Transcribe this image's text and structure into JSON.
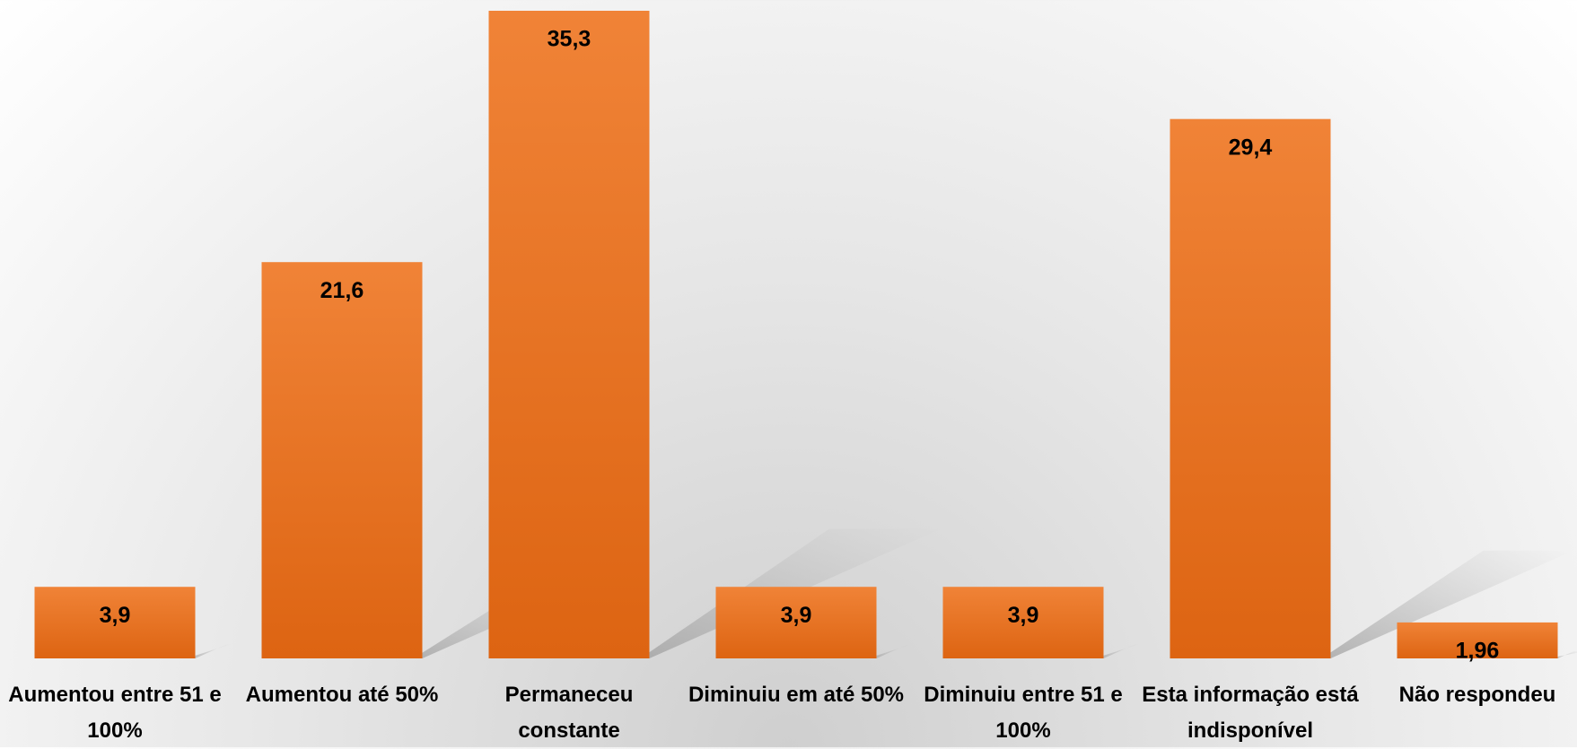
{
  "chart_data": {
    "type": "bar",
    "categories": [
      "Aumentou entre 51 e 100%",
      "Aumentou até 50%",
      "Permaneceu constante",
      "Diminuiu em até 50%",
      "Diminuiu entre 51 e 100%",
      "Esta informação está indisponível",
      "Não respondeu"
    ],
    "values": [
      3.9,
      21.6,
      35.3,
      3.9,
      3.9,
      29.4,
      1.96
    ],
    "value_labels": [
      "3,9",
      "21,6",
      "35,3",
      "3,9",
      "3,9",
      "29,4",
      "1,96"
    ],
    "color": "#e8742a"
  }
}
